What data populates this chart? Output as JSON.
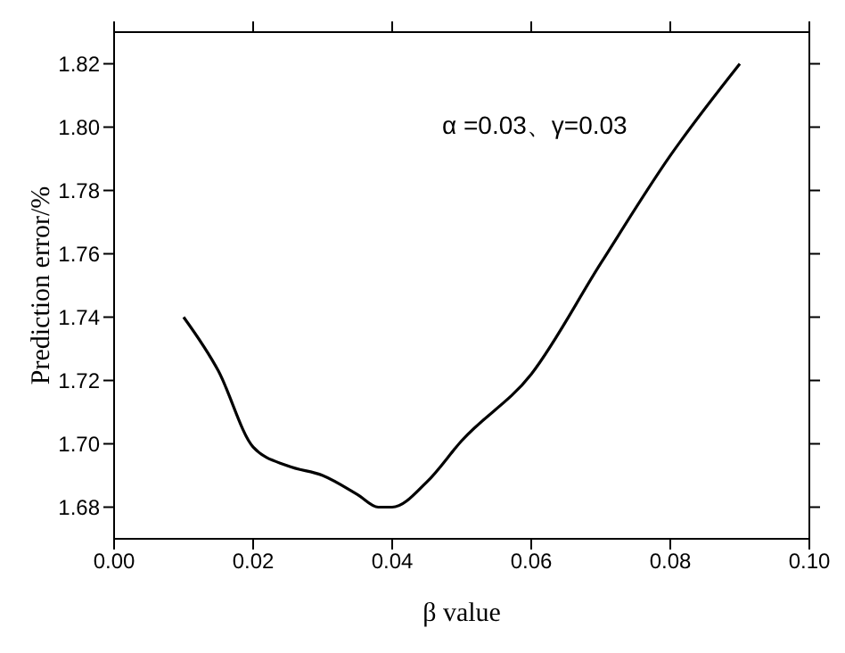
{
  "chart_data": {
    "type": "line",
    "xlabel": "β value",
    "ylabel": "Prediction error/%",
    "annotations": [
      "α =0.03、γ=0.03"
    ],
    "x": [
      0.01,
      0.015,
      0.02,
      0.025,
      0.03,
      0.035,
      0.038,
      0.04,
      0.045,
      0.05,
      0.06,
      0.07,
      0.08,
      0.09
    ],
    "series": [
      {
        "color": "#000000",
        "values": [
          1.74,
          1.723,
          1.699,
          1.693,
          1.69,
          1.684,
          1.68,
          1.68,
          1.688,
          1.701,
          1.722,
          1.757,
          1.791,
          1.82
        ]
      }
    ],
    "xlim": [
      0,
      0.1
    ],
    "xticks": [
      {
        "value": 0,
        "label": "0.00"
      },
      {
        "value": 0.02,
        "label": "0.02"
      },
      {
        "value": 0.04,
        "label": "0.04"
      },
      {
        "value": 0.06,
        "label": "0.06"
      },
      {
        "value": 0.08,
        "label": "0.08"
      },
      {
        "value": 0.1,
        "label": "0.10"
      }
    ],
    "ylim": [
      1.67,
      1.83
    ],
    "yticks": [
      {
        "value": 1.68,
        "label": "1.68"
      },
      {
        "value": 1.7,
        "label": "1.70"
      },
      {
        "value": 1.72,
        "label": "1.72"
      },
      {
        "value": 1.74,
        "label": "1.74"
      },
      {
        "value": 1.76,
        "label": "1.76"
      },
      {
        "value": 1.78,
        "label": "1.78"
      },
      {
        "value": 1.8,
        "label": "1.80"
      },
      {
        "value": 1.82,
        "label": "1.82"
      }
    ],
    "grid": false,
    "legend": false,
    "marker": "none",
    "line_style": "solid"
  }
}
